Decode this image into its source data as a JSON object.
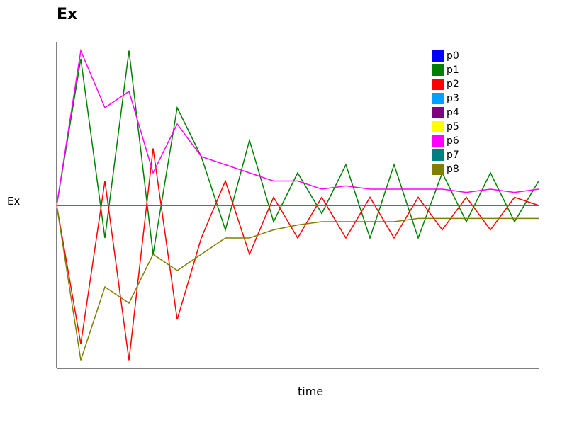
{
  "chart_data": {
    "type": "line",
    "title": "Ex",
    "xlabel": "time",
    "ylabel": "Ex",
    "x": [
      0,
      0.05,
      0.1,
      0.15,
      0.2,
      0.25,
      0.3,
      0.35,
      0.4,
      0.45,
      0.5,
      0.55,
      0.6,
      0.65,
      0.7,
      0.75,
      0.8,
      0.85,
      0.9,
      0.95,
      1.0
    ],
    "ylim": [
      -1,
      1
    ],
    "xlim": [
      0,
      1
    ],
    "legend_position": "top-right",
    "series": [
      {
        "name": "p0",
        "color": "#0000ff",
        "values": [
          0,
          0,
          0,
          0,
          0,
          0,
          0,
          0,
          0,
          0,
          0,
          0,
          0,
          0,
          0,
          0,
          0,
          0,
          0,
          0,
          0
        ]
      },
      {
        "name": "p1",
        "color": "#008000",
        "values": [
          0,
          0.9,
          -0.2,
          0.95,
          -0.3,
          0.6,
          0.3,
          -0.15,
          0.4,
          -0.1,
          0.2,
          -0.05,
          0.25,
          -0.2,
          0.25,
          -0.2,
          0.2,
          -0.1,
          0.2,
          -0.1,
          0.15
        ]
      },
      {
        "name": "p2",
        "color": "#ff0000",
        "values": [
          0,
          -0.85,
          0.15,
          -0.95,
          0.35,
          -0.7,
          -0.2,
          0.15,
          -0.3,
          0.05,
          -0.2,
          0.05,
          -0.2,
          0.05,
          -0.2,
          0.05,
          -0.15,
          0.05,
          -0.15,
          0.05,
          0
        ]
      },
      {
        "name": "p3",
        "color": "#00a0ff",
        "values": [
          0,
          0,
          0,
          0,
          0,
          0,
          0,
          0,
          0,
          0,
          0,
          0,
          0,
          0,
          0,
          0,
          0,
          0,
          0,
          0,
          0
        ]
      },
      {
        "name": "p4",
        "color": "#800080",
        "values": [
          0,
          0,
          0,
          0,
          0,
          0,
          0,
          0,
          0,
          0,
          0,
          0,
          0,
          0,
          0,
          0,
          0,
          0,
          0,
          0,
          0
        ]
      },
      {
        "name": "p5",
        "color": "#ffff00",
        "values": [
          0,
          0,
          0,
          0,
          0,
          0,
          0,
          0,
          0,
          0,
          0,
          0,
          0,
          0,
          0,
          0,
          0,
          0,
          0,
          0,
          0
        ]
      },
      {
        "name": "p6",
        "color": "#ff00ff",
        "values": [
          0,
          0.95,
          0.6,
          0.7,
          0.2,
          0.5,
          0.3,
          0.25,
          0.2,
          0.15,
          0.15,
          0.1,
          0.12,
          0.1,
          0.1,
          0.1,
          0.1,
          0.08,
          0.1,
          0.08,
          0.1
        ]
      },
      {
        "name": "p7",
        "color": "#008080",
        "values": [
          0,
          0,
          0,
          0,
          0,
          0,
          0,
          0,
          0,
          0,
          0,
          0,
          0,
          0,
          0,
          0,
          0,
          0,
          0,
          0,
          0
        ]
      },
      {
        "name": "p8",
        "color": "#808000",
        "values": [
          0,
          -0.95,
          -0.5,
          -0.6,
          -0.3,
          -0.4,
          -0.3,
          -0.2,
          -0.2,
          -0.15,
          -0.12,
          -0.1,
          -0.1,
          -0.1,
          -0.1,
          -0.08,
          -0.08,
          -0.08,
          -0.08,
          -0.08,
          -0.08
        ]
      }
    ]
  }
}
